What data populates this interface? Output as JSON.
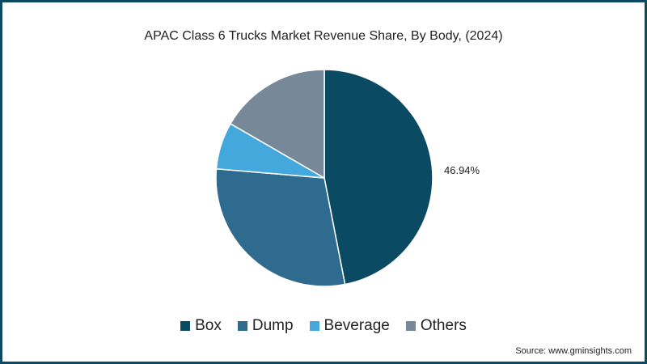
{
  "chart_data": {
    "type": "pie",
    "title": "APAC Class 6 Trucks Market Revenue Share, By Body, (2024)",
    "categories": [
      "Box",
      "Dump",
      "Beverage",
      "Others"
    ],
    "values": [
      46.94,
      29.4,
      7.0,
      16.66
    ],
    "colors": [
      "#0b4a63",
      "#2e6b8e",
      "#45a8dc",
      "#778899"
    ],
    "data_labels": [
      {
        "category": "Box",
        "text": "46.94%"
      }
    ],
    "legend_position": "bottom",
    "start_angle": "12 o'clock, clockwise"
  },
  "title": "APAC Class 6 Trucks Market Revenue Share, By Body, (2024)",
  "label_box": "46.94%",
  "legend": [
    {
      "label": "Box",
      "color": "#0b4a63"
    },
    {
      "label": "Dump",
      "color": "#2e6b8e"
    },
    {
      "label": "Beverage",
      "color": "#45a8dc"
    },
    {
      "label": "Others",
      "color": "#778899"
    }
  ],
  "source": "Source: www.gminsights.com"
}
